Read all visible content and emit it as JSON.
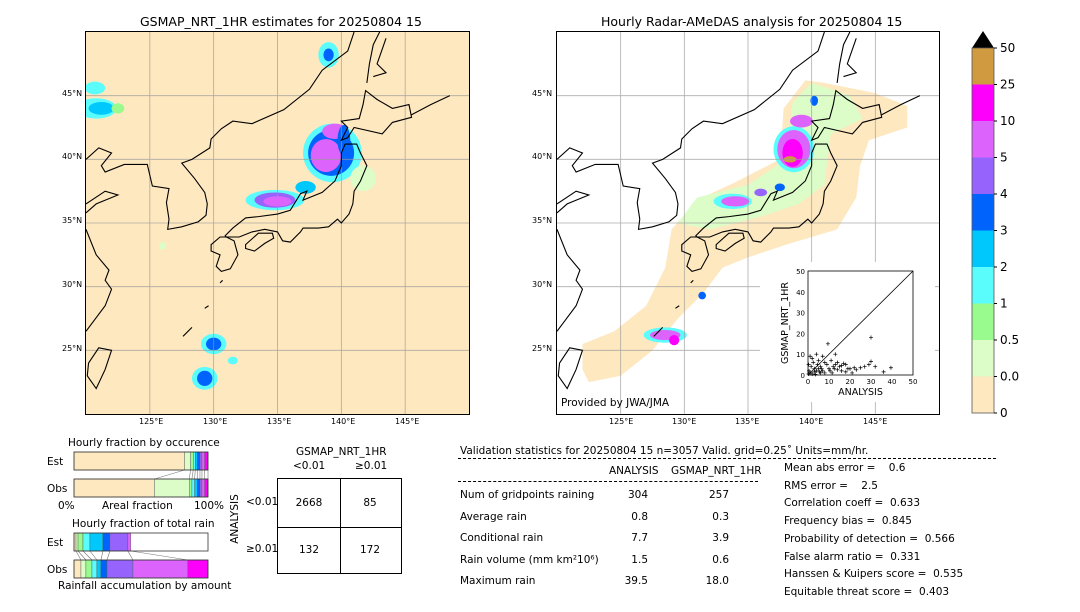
{
  "left_map": {
    "title": "GSMAP_NRT_1HR estimates for 20250804 15"
  },
  "right_map": {
    "title": "Hourly Radar-AMeDAS analysis for 20250804 15",
    "credit": "Provided by JWA/JMA"
  },
  "lat_ticks": [
    "45°N",
    "40°N",
    "35°N",
    "30°N",
    "25°N"
  ],
  "lon_ticks": [
    "125°E",
    "130°E",
    "135°E",
    "140°E",
    "145°E"
  ],
  "colorbar": {
    "labels": [
      "50",
      "25",
      "10",
      "5",
      "4",
      "3",
      "2",
      "1",
      "0.5",
      "0.01",
      "0"
    ],
    "colors": [
      "#fee8c0",
      "#dcfcc8",
      "#99fb8d",
      "#5bfcfc",
      "#00c8fc",
      "#0064fc",
      "#9664fc",
      "#dc64fc",
      "#fc00fc",
      "#d09a40"
    ],
    "extend_color": "#000000"
  },
  "occurrence": {
    "title": "Hourly fraction by occurence",
    "est_label": "Est",
    "obs_label": "Obs",
    "xlabel": "Areal fraction",
    "x0": "0%",
    "x1": "100%",
    "est": [
      82.5,
      4.5,
      2,
      1.5,
      1.5,
      2,
      1.5,
      2,
      2.5,
      0
    ],
    "obs": [
      60,
      26,
      2,
      2,
      2,
      2,
      1.5,
      2,
      2.5,
      0
    ]
  },
  "total_rain": {
    "title": "Hourly fraction of total rain",
    "est_label": "Est",
    "obs_label": "Obs",
    "xlabel": "Rainfall accumulation by amount",
    "est": [
      1.5,
      1.5,
      3.7,
      5.2,
      9.7,
      5.2,
      13.4,
      2.2,
      0
    ],
    "obs": [
      5.2,
      3.7,
      4.5,
      3.7,
      3,
      4.5,
      19.4,
      41,
      15
    ]
  },
  "contingency": {
    "col_title": "GSMAP_NRT_1HR",
    "row_title": "ANALYSIS",
    "cols": [
      "<0.01",
      "≥0.01"
    ],
    "rows": [
      "<0.01",
      "≥0.01"
    ],
    "values": [
      [
        "2668",
        "85"
      ],
      [
        "132",
        "172"
      ]
    ]
  },
  "stats": {
    "header": "Validation statistics for 20250804 15  n=3057 Valid. grid=0.25˚ Units=mm/hr.",
    "col1": "ANALYSIS",
    "col2": "GSMAP_NRT_1HR",
    "rows": [
      {
        "label": "Num of gridpoints raining",
        "a": "304",
        "b": "257"
      },
      {
        "label": "Average rain",
        "a": "0.8",
        "b": "0.3"
      },
      {
        "label": "Conditional rain",
        "a": "7.7",
        "b": "3.9"
      },
      {
        "label": "Rain volume (mm km²10⁶)",
        "a": "1.5",
        "b": "0.6"
      },
      {
        "label": "Maximum rain",
        "a": "39.5",
        "b": "18.0"
      }
    ],
    "scores": [
      "Mean abs error =    0.6",
      "RMS error =    2.5",
      "Correlation coeff =  0.633",
      "Frequency bias =  0.845",
      "Probability of detection =  0.566",
      "False alarm ratio =  0.331",
      "Hanssen & Kuipers score =  0.535",
      "Equitable threat score =  0.403"
    ]
  },
  "chart_data": {
    "type": "scatter",
    "xlabel": "ANALYSIS",
    "ylabel": "GSMAP_NRT_1HR",
    "xlim": [
      0,
      50
    ],
    "ylim": [
      0,
      50
    ],
    "ticks": [
      "0",
      "10",
      "20",
      "30",
      "40",
      "50"
    ],
    "points": [
      [
        9.5,
        15
      ],
      [
        30,
        18
      ],
      [
        39.5,
        3.5
      ],
      [
        36,
        1.5
      ],
      [
        32,
        4
      ],
      [
        30,
        6.5
      ],
      [
        29,
        5
      ],
      [
        27,
        4
      ],
      [
        25,
        3.5
      ],
      [
        22,
        3.5
      ],
      [
        20,
        3
      ],
      [
        18,
        5
      ],
      [
        17,
        5.5
      ],
      [
        16,
        2
      ],
      [
        15,
        4
      ],
      [
        14,
        6
      ],
      [
        13,
        10
      ],
      [
        12,
        4
      ],
      [
        11,
        7
      ],
      [
        10,
        3
      ],
      [
        9,
        5
      ],
      [
        8,
        6
      ],
      [
        7,
        9
      ],
      [
        6,
        4
      ],
      [
        5,
        7
      ],
      [
        4,
        10
      ],
      [
        3,
        3
      ],
      [
        2,
        8
      ],
      [
        1,
        9
      ],
      [
        0.5,
        2
      ],
      [
        1,
        1
      ],
      [
        2,
        0.5
      ],
      [
        3,
        1.5
      ],
      [
        4,
        2
      ],
      [
        5,
        3
      ],
      [
        6,
        1
      ],
      [
        7,
        2
      ],
      [
        8,
        1
      ],
      [
        0.3,
        5
      ],
      [
        0.2,
        0.5
      ],
      [
        1.5,
        4
      ],
      [
        2.5,
        6
      ],
      [
        3.5,
        0.3
      ],
      [
        4.5,
        5
      ],
      [
        5.5,
        1.5
      ],
      [
        6.5,
        3
      ],
      [
        10.5,
        2
      ],
      [
        11.5,
        1
      ],
      [
        12.5,
        3
      ],
      [
        14,
        2.5
      ],
      [
        19,
        3
      ],
      [
        21,
        1
      ],
      [
        23,
        2.5
      ],
      [
        18,
        1.5
      ],
      [
        16,
        4.5
      ],
      [
        13,
        5
      ]
    ]
  }
}
